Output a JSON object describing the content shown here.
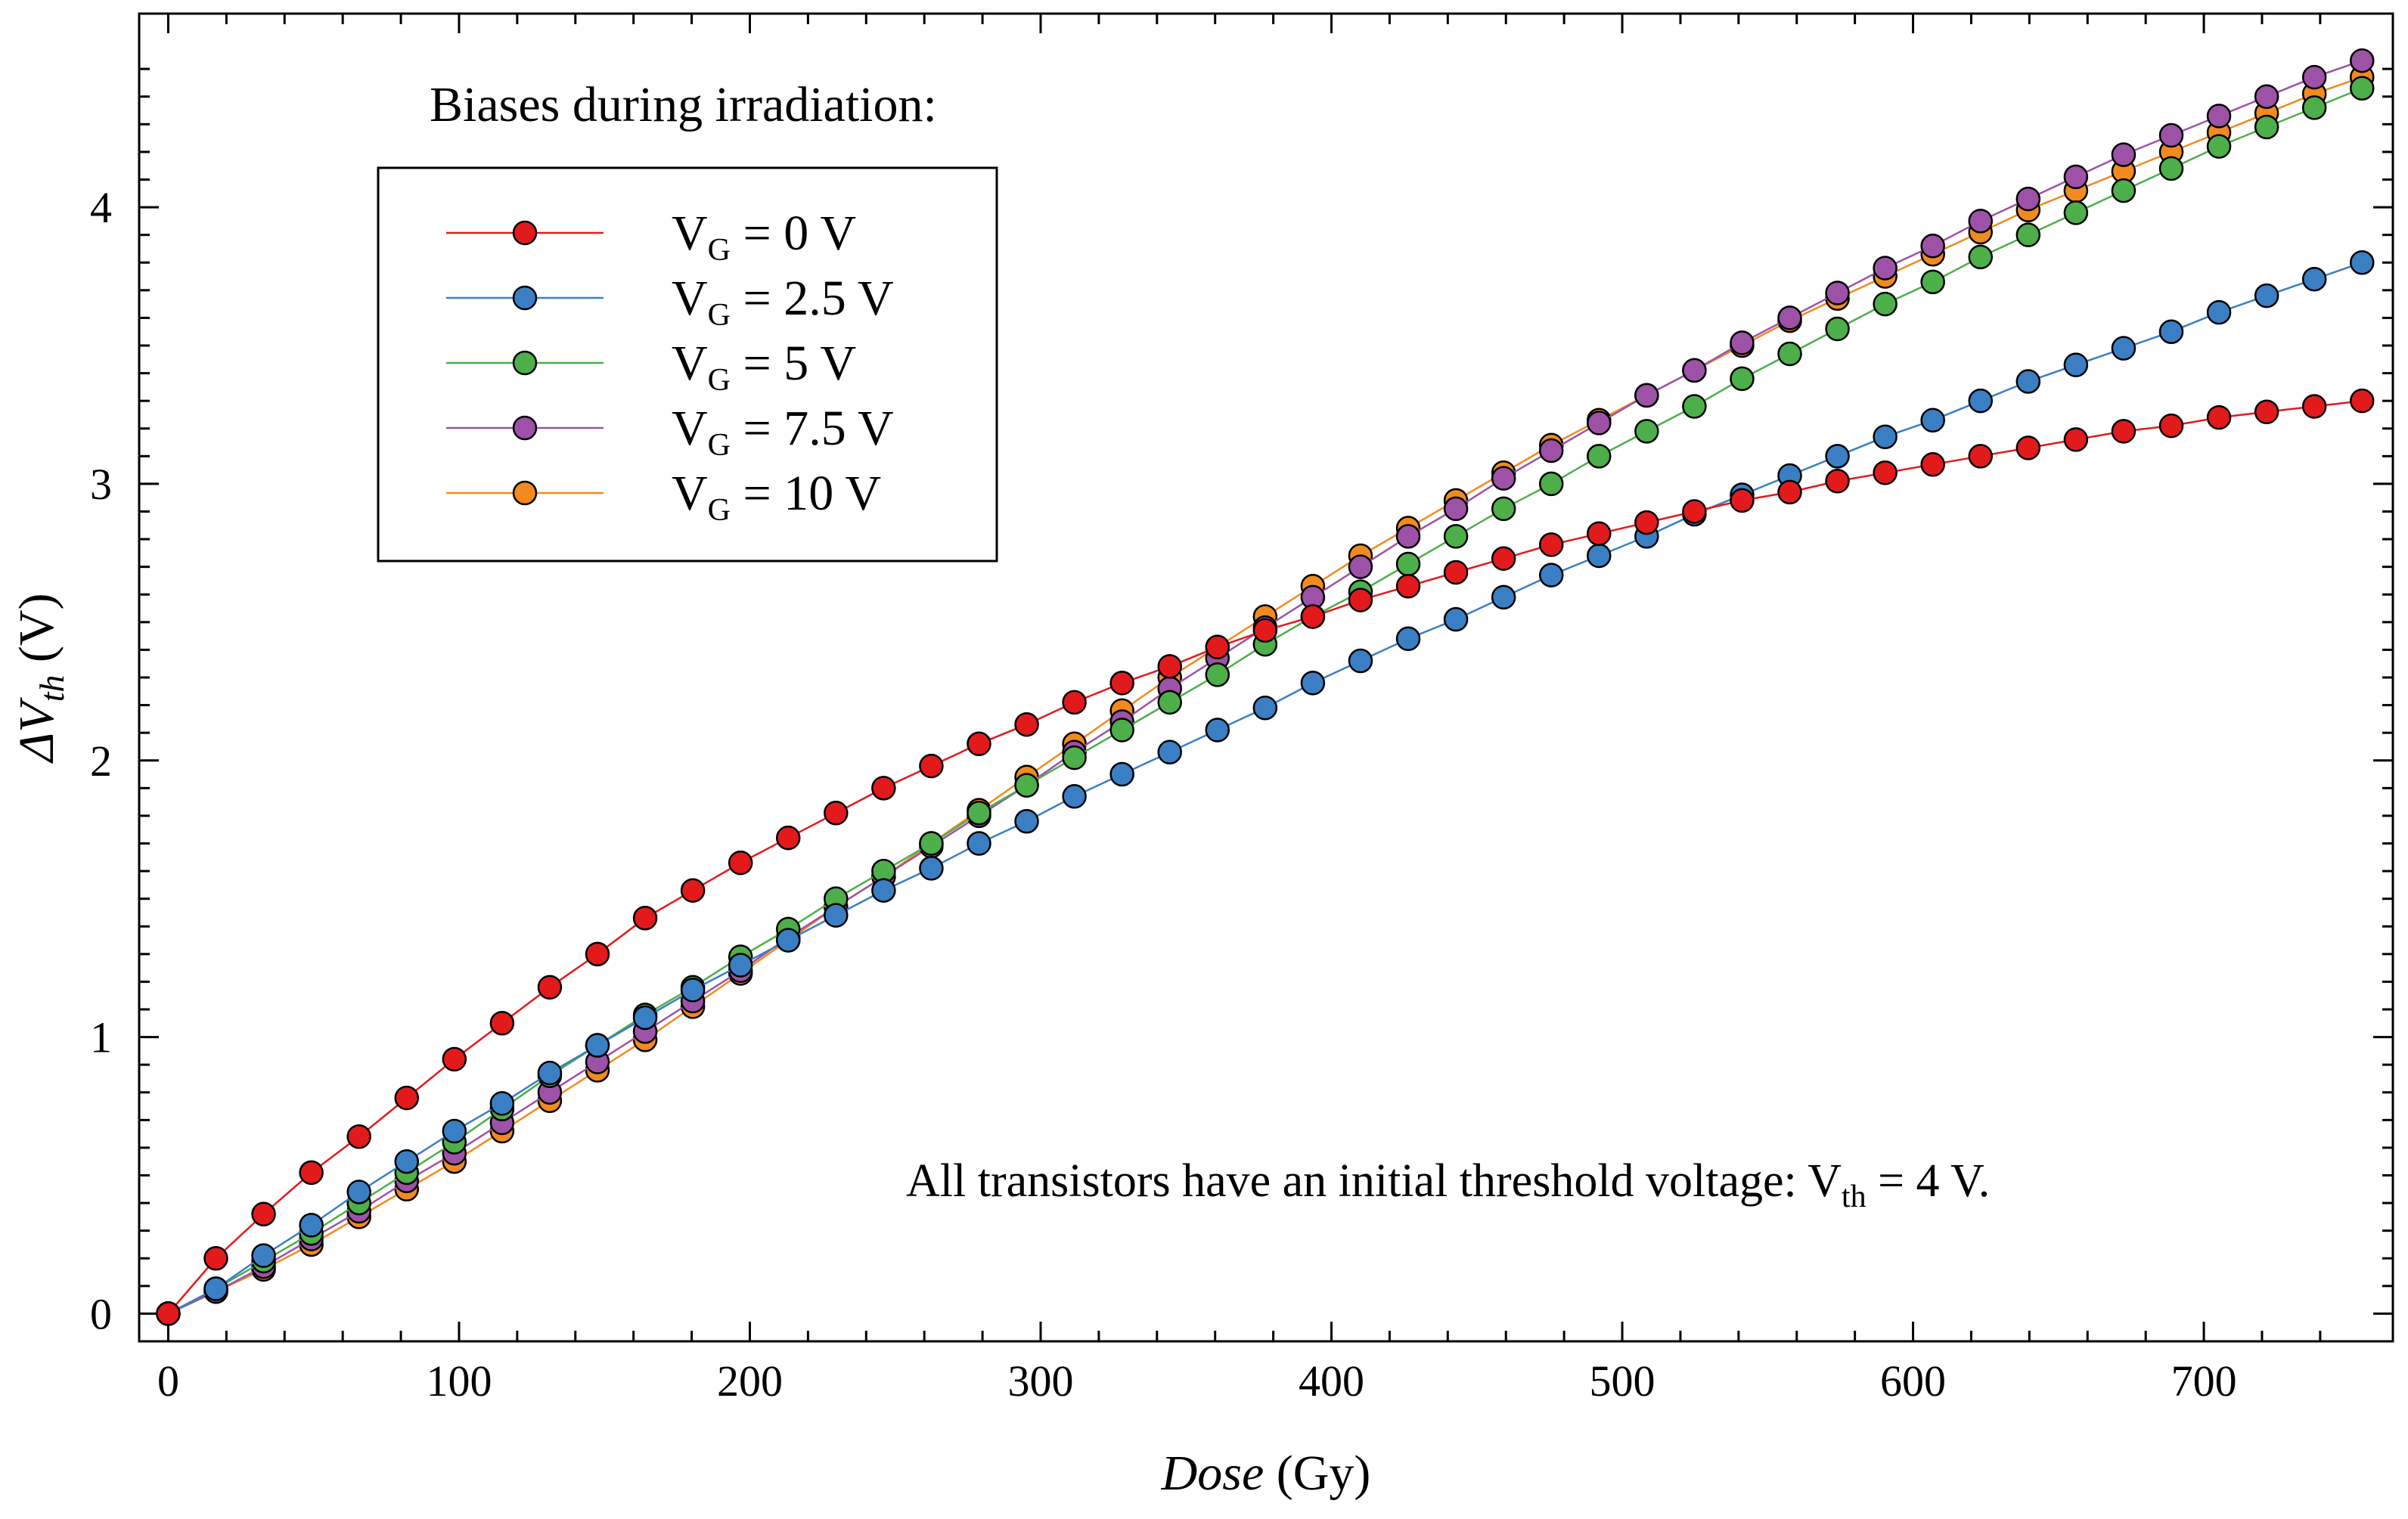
{
  "chart_data": {
    "type": "line",
    "title": "",
    "xlabel": {
      "italic": "Dose",
      "rest": " (Gy)"
    },
    "ylabel": {
      "prefix": "ΔV",
      "sub": "th",
      "rest": " (V)"
    },
    "xlim": [
      -10,
      765
    ],
    "ylim": [
      -0.1,
      4.7
    ],
    "xticks": [
      0,
      100,
      200,
      300,
      400,
      500,
      600,
      700
    ],
    "yticks": [
      0,
      1,
      2,
      3,
      4
    ],
    "x": [
      0,
      16.4,
      32.8,
      49.2,
      65.6,
      82,
      98.4,
      114.8,
      131.2,
      147.6,
      164,
      180.4,
      196.8,
      213.2,
      229.6,
      246,
      262.4,
      278.8,
      295.2,
      311.6,
      328,
      344.4,
      360.8,
      377.2,
      393.6,
      410,
      426.4,
      442.8,
      459.2,
      475.6,
      492,
      508.4,
      524.8,
      541.2,
      557.6,
      574,
      590.4,
      606.8,
      623.2,
      639.6,
      656,
      672.4,
      688.8,
      705.2,
      721.6,
      738,
      754.4
    ],
    "series": [
      {
        "name": "VG = 10 V",
        "color": "#f28a1e",
        "values": [
          0,
          0.08,
          0.16,
          0.25,
          0.35,
          0.45,
          0.55,
          0.66,
          0.77,
          0.88,
          0.99,
          1.11,
          1.23,
          1.35,
          1.47,
          1.58,
          1.7,
          1.82,
          1.94,
          2.06,
          2.18,
          2.3,
          2.41,
          2.52,
          2.63,
          2.74,
          2.84,
          2.94,
          3.04,
          3.14,
          3.23,
          3.32,
          3.41,
          3.5,
          3.59,
          3.67,
          3.75,
          3.83,
          3.91,
          3.99,
          4.06,
          4.13,
          4.2,
          4.27,
          4.34,
          4.41,
          4.47
        ]
      },
      {
        "name": "VG = 7.5 V",
        "color": "#9d52a8",
        "values": [
          0,
          0.08,
          0.17,
          0.27,
          0.37,
          0.48,
          0.58,
          0.69,
          0.8,
          0.91,
          1.02,
          1.13,
          1.24,
          1.36,
          1.47,
          1.58,
          1.69,
          1.8,
          1.91,
          2.03,
          2.14,
          2.26,
          2.37,
          2.48,
          2.59,
          2.7,
          2.81,
          2.91,
          3.02,
          3.12,
          3.22,
          3.32,
          3.41,
          3.51,
          3.6,
          3.69,
          3.78,
          3.86,
          3.95,
          4.03,
          4.11,
          4.19,
          4.26,
          4.33,
          4.4,
          4.47,
          4.53
        ]
      },
      {
        "name": "VG = 5 V",
        "color": "#4daf4a",
        "values": [
          0,
          0.09,
          0.19,
          0.29,
          0.4,
          0.51,
          0.62,
          0.74,
          0.86,
          0.97,
          1.08,
          1.18,
          1.29,
          1.39,
          1.5,
          1.6,
          1.7,
          1.81,
          1.91,
          2.01,
          2.11,
          2.21,
          2.31,
          2.42,
          2.52,
          2.61,
          2.71,
          2.81,
          2.91,
          3.0,
          3.1,
          3.19,
          3.28,
          3.38,
          3.47,
          3.56,
          3.65,
          3.73,
          3.82,
          3.9,
          3.98,
          4.06,
          4.14,
          4.22,
          4.29,
          4.36,
          4.43
        ]
      },
      {
        "name": "VG = 2.5 V",
        "color": "#3a7fc4",
        "values": [
          0,
          0.09,
          0.21,
          0.32,
          0.44,
          0.55,
          0.66,
          0.76,
          0.87,
          0.97,
          1.07,
          1.17,
          1.26,
          1.35,
          1.44,
          1.53,
          1.61,
          1.7,
          1.78,
          1.87,
          1.95,
          2.03,
          2.11,
          2.19,
          2.28,
          2.36,
          2.44,
          2.51,
          2.59,
          2.67,
          2.74,
          2.81,
          2.89,
          2.96,
          3.03,
          3.1,
          3.17,
          3.23,
          3.3,
          3.37,
          3.43,
          3.49,
          3.55,
          3.62,
          3.68,
          3.74,
          3.8
        ]
      },
      {
        "name": "VG = 0 V",
        "color": "#e31a1c",
        "values": [
          0,
          0.2,
          0.36,
          0.51,
          0.64,
          0.78,
          0.92,
          1.05,
          1.18,
          1.3,
          1.43,
          1.53,
          1.63,
          1.72,
          1.81,
          1.9,
          1.98,
          2.06,
          2.13,
          2.21,
          2.28,
          2.34,
          2.41,
          2.47,
          2.52,
          2.58,
          2.63,
          2.68,
          2.73,
          2.78,
          2.82,
          2.86,
          2.9,
          2.94,
          2.97,
          3.01,
          3.04,
          3.07,
          3.1,
          3.13,
          3.16,
          3.19,
          3.21,
          3.24,
          3.26,
          3.28,
          3.3
        ]
      }
    ],
    "legend": {
      "title": "Biases during irradiation:",
      "placement": "top-left",
      "entries": [
        {
          "label_main": "V",
          "label_sub": "G",
          "label_rest": " = 0 V",
          "color": "#e31a1c"
        },
        {
          "label_main": "V",
          "label_sub": "G",
          "label_rest": " = 2.5 V",
          "color": "#3a7fc4"
        },
        {
          "label_main": "V",
          "label_sub": "G",
          "label_rest": " = 5 V",
          "color": "#4daf4a"
        },
        {
          "label_main": "V",
          "label_sub": "G",
          "label_rest": " = 7.5 V",
          "color": "#9d52a8"
        },
        {
          "label_main": "V",
          "label_sub": "G",
          "label_rest": " = 10 V",
          "color": "#f28a1e"
        }
      ]
    },
    "annotation": {
      "prefix": "All transistors have an initial threshold voltage: V",
      "sub": "th",
      "rest": " = 4 V."
    }
  }
}
